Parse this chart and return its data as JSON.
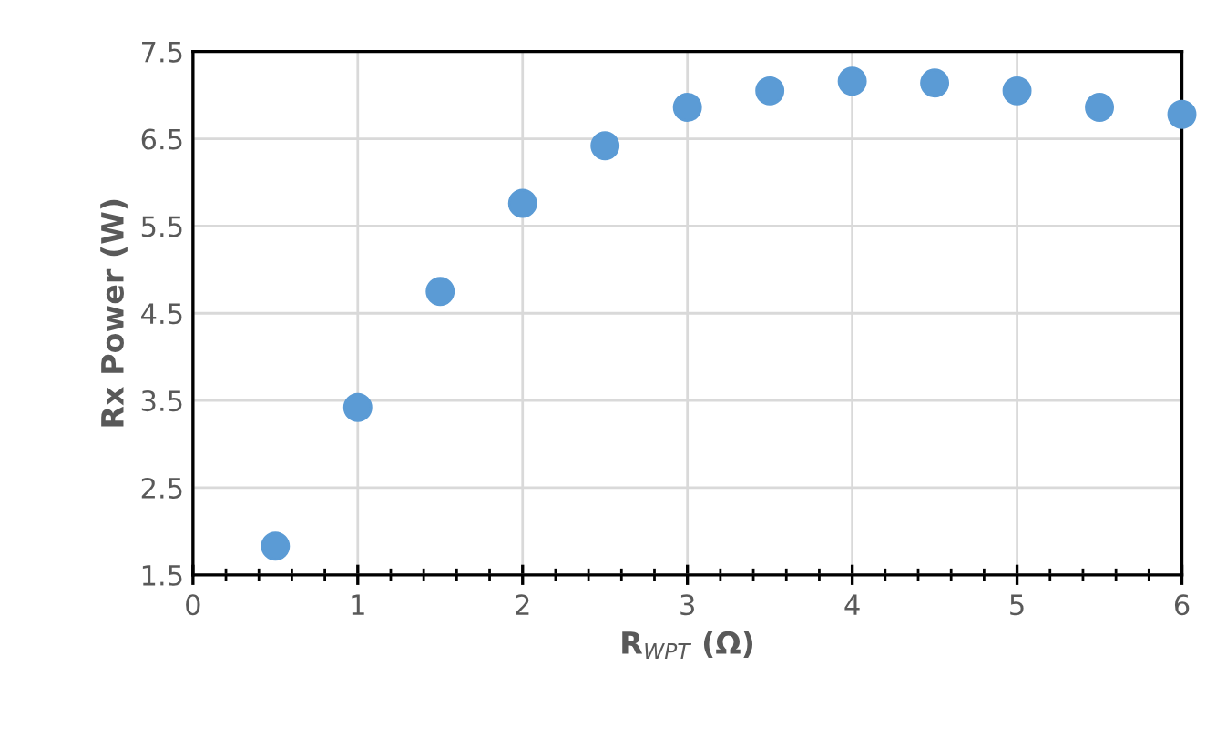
{
  "chart_data": {
    "type": "scatter",
    "xlabel": "R$_{WPT}$ (Ω)",
    "ylabel": "Rx Power (W)",
    "x": [
      0.5,
      1,
      1.5,
      2,
      2.5,
      3,
      3.5,
      4,
      4.5,
      5,
      5.5,
      6
    ],
    "series": [
      {
        "color": "#5b9bd5",
        "values": [
          1.83,
          3.42,
          4.75,
          5.76,
          6.42,
          6.86,
          7.05,
          7.16,
          7.14,
          7.05,
          6.86,
          6.78
        ]
      }
    ],
    "marker": "circle",
    "xlim": [
      0,
      6
    ],
    "ylim": [
      1.5,
      7.5
    ],
    "xticks": [
      0,
      {
        "value": 0.2,
        "label": null
      },
      {
        "value": 0.4,
        "label": null
      },
      {
        "value": 0.6,
        "label": null
      },
      {
        "value": 0.8,
        "label": null
      },
      1,
      {
        "value": 1.2,
        "label": null
      },
      {
        "value": 1.4,
        "label": null
      },
      {
        "value": 1.6,
        "label": null
      },
      {
        "value": 1.8,
        "label": null
      },
      2,
      {
        "value": 2.2,
        "label": null
      },
      {
        "value": 2.4,
        "label": null
      },
      {
        "value": 2.6,
        "label": null
      },
      {
        "value": 2.8,
        "label": null
      },
      3,
      {
        "value": 3.2,
        "label": null
      },
      {
        "value": 3.4,
        "label": null
      },
      {
        "value": 3.6,
        "label": null
      },
      {
        "value": 3.8,
        "label": null
      },
      4,
      {
        "value": 4.2,
        "label": null
      },
      {
        "value": 4.4,
        "label": null
      },
      {
        "value": 4.6,
        "label": null
      },
      {
        "value": 4.8,
        "label": null
      },
      5,
      {
        "value": 5.2,
        "label": null
      },
      {
        "value": 5.4,
        "label": null
      },
      {
        "value": 5.6,
        "label": null
      },
      {
        "value": 5.8,
        "label": null
      },
      6
    ],
    "yticks": [
      1.5,
      2.5,
      3.5,
      4.5,
      5.5,
      6.5,
      7.5
    ],
    "grid": true
  }
}
